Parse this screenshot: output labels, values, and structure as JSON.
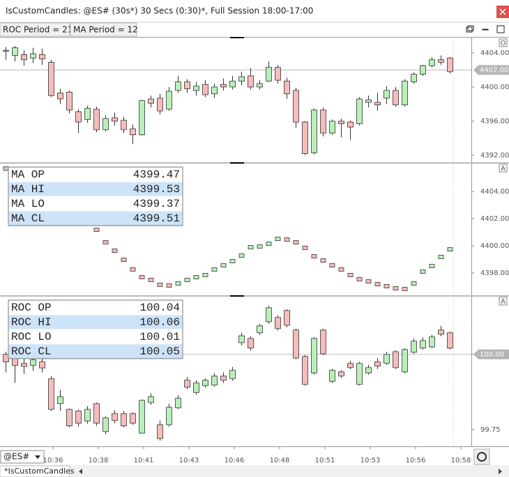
{
  "window": {
    "title": "IsCustomCandles: @ES# (30s*) 30 Secs (0:30)*, Full Session 18:00-17:00"
  },
  "toolbar": {
    "params": [
      "ROC Period = 21",
      "MA Period = 12"
    ]
  },
  "up_color": "#b9f0b9",
  "down_color": "#f6bcbc",
  "panels": [
    {
      "type": "candlestick",
      "badge": "O",
      "ylim": [
        4391.18,
        4405.71
      ],
      "yticks": [
        {
          "value": 4404,
          "label": "4404.00"
        },
        {
          "value": 4400,
          "label": "4400.00"
        },
        {
          "value": 4396,
          "label": "4396.00"
        },
        {
          "value": 4392,
          "label": "4392.00"
        }
      ],
      "last": {
        "value": 4402,
        "label": "4402.00"
      },
      "ohlc": [
        [
          4404.2,
          4404.7,
          4403.2,
          4404.3
        ],
        [
          4403.7,
          4404.8,
          4403.0,
          4404.6
        ],
        [
          4403.8,
          4404.3,
          4402.5,
          4403.2
        ],
        [
          4403.4,
          4404.6,
          4402.8,
          4403.9
        ],
        [
          4403.8,
          4404.5,
          4402.6,
          4403.3
        ],
        [
          4402.9,
          4403.2,
          4398.8,
          4399.0
        ],
        [
          4399.3,
          4399.8,
          4398.0,
          4398.6
        ],
        [
          4399.4,
          4399.6,
          4396.9,
          4397.3
        ],
        [
          4397.1,
          4397.4,
          4394.6,
          4395.9
        ],
        [
          4396.2,
          4397.8,
          4395.8,
          4397.5
        ],
        [
          4397.4,
          4397.7,
          4394.7,
          4395.0
        ],
        [
          4395.0,
          4396.7,
          4394.8,
          4396.3
        ],
        [
          4396.4,
          4397.0,
          4395.5,
          4396.0
        ],
        [
          4396.1,
          4396.5,
          4394.6,
          4395.0
        ],
        [
          4395.1,
          4395.6,
          4393.3,
          4394.4
        ],
        [
          4394.4,
          4398.5,
          4394.3,
          4398.4
        ],
        [
          4398.6,
          4399.0,
          4397.6,
          4398.1
        ],
        [
          4398.7,
          4399.2,
          4396.8,
          4397.2
        ],
        [
          4397.4,
          4400.0,
          4397.2,
          4399.5
        ],
        [
          4399.6,
          4401.3,
          4399.3,
          4400.6
        ],
        [
          4400.6,
          4400.9,
          4399.3,
          4399.8
        ],
        [
          4399.6,
          4400.6,
          4399.0,
          4400.1
        ],
        [
          4400.3,
          4400.8,
          4398.8,
          4399.1
        ],
        [
          4399.2,
          4400.4,
          4398.7,
          4400.0
        ],
        [
          4400.3,
          4401.0,
          4399.6,
          4400.0
        ],
        [
          4400.0,
          4401.3,
          4399.7,
          4400.7
        ],
        [
          4400.7,
          4401.8,
          4400.2,
          4401.2
        ],
        [
          4401.3,
          4402.2,
          4399.7,
          4400.0
        ],
        [
          4400.0,
          4400.8,
          4399.7,
          4400.4
        ],
        [
          4400.7,
          4403.0,
          4400.6,
          4402.3
        ],
        [
          4402.3,
          4402.6,
          4400.4,
          4400.8
        ],
        [
          4400.7,
          4401.1,
          4398.6,
          4399.2
        ],
        [
          4399.6,
          4399.9,
          4395.2,
          4395.9
        ],
        [
          4395.9,
          4396.0,
          4392.0,
          4392.2
        ],
        [
          4392.3,
          4397.5,
          4392.1,
          4397.3
        ],
        [
          4397.3,
          4397.6,
          4394.2,
          4394.6
        ],
        [
          4394.6,
          4396.2,
          4394.4,
          4396.0
        ],
        [
          4396.0,
          4396.3,
          4394.1,
          4395.7
        ],
        [
          4395.9,
          4396.1,
          4393.8,
          4395.3
        ],
        [
          4395.7,
          4398.8,
          4395.5,
          4398.6
        ],
        [
          4398.2,
          4399.0,
          4397.6,
          4398.5
        ],
        [
          4398.2,
          4399.3,
          4397.2,
          4397.9
        ],
        [
          4398.7,
          4400.1,
          4398.0,
          4399.6
        ],
        [
          4399.6,
          4400.0,
          4397.7,
          4397.9
        ],
        [
          4397.9,
          4400.9,
          4397.7,
          4400.7
        ],
        [
          4400.6,
          4401.7,
          4400.4,
          4401.5
        ],
        [
          4401.5,
          4402.6,
          4401.3,
          4402.5
        ],
        [
          4402.5,
          4403.5,
          4402.3,
          4403.2
        ],
        [
          4403.2,
          4403.7,
          4402.6,
          4402.9
        ],
        [
          4403.4,
          4403.5,
          4401.6,
          4401.8
        ]
      ]
    },
    {
      "type": "markers",
      "badge": "A",
      "ylim": [
        4396.36,
        4406.05
      ],
      "yticks": [
        {
          "value": 4404,
          "label": "4404.00"
        },
        {
          "value": 4402,
          "label": "4402.00"
        },
        {
          "value": 4400,
          "label": "4400.00"
        },
        {
          "value": 4398,
          "label": "4398.00"
        }
      ],
      "values": [
        4405.69,
        null,
        null,
        null,
        null,
        null,
        null,
        null,
        null,
        null,
        4401.18,
        4400.26,
        4399.64,
        4398.97,
        4398.26,
        4397.69,
        4397.49,
        4397.13,
        4397.08,
        4397.23,
        4397.49,
        4397.69,
        4397.85,
        4398.26,
        4398.56,
        4398.87,
        4399.28,
        4399.9,
        4399.95,
        4400.15,
        4400.51,
        4400.46,
        4400.26,
        4399.85,
        4399.23,
        4398.92,
        4398.56,
        4398.26,
        4397.85,
        4397.54,
        4397.38,
        4397.18,
        4397.03,
        4396.87,
        4396.82,
        4397.23,
        4398.1,
        4398.51,
        4399.18,
        4399.74
      ],
      "table": [
        [
          "MA OP",
          4399.47
        ],
        [
          "MA HI",
          4399.53
        ],
        [
          "MA LO",
          4399.37
        ],
        [
          "MA CL",
          4399.51
        ]
      ]
    },
    {
      "type": "candlestick",
      "badge": "A",
      "ylim": [
        99.694,
        100.192
      ],
      "yticks": [
        {
          "value": 100,
          "label": "100.00"
        },
        99.75
      ],
      "last": {
        "value": 100,
        "label": "100.00"
      },
      "ohlc": [
        [
          100.0,
          100.009,
          99.94,
          99.975
        ],
        [
          99.986,
          99.998,
          99.905,
          99.963
        ],
        [
          99.97,
          99.99,
          99.935,
          99.96
        ],
        [
          99.963,
          99.995,
          99.945,
          99.982
        ],
        [
          99.975,
          99.99,
          99.94,
          99.955
        ],
        [
          99.919,
          99.928,
          99.812,
          99.817
        ],
        [
          99.836,
          99.882,
          99.812,
          99.859
        ],
        [
          99.817,
          99.82,
          99.757,
          99.762
        ],
        [
          99.812,
          99.816,
          99.76,
          99.771
        ],
        [
          99.778,
          99.828,
          99.77,
          99.817
        ],
        [
          99.836,
          99.84,
          99.762,
          99.771
        ],
        [
          99.743,
          99.794,
          99.734,
          99.789
        ],
        [
          99.803,
          99.814,
          99.771,
          99.78
        ],
        [
          99.803,
          99.812,
          99.757,
          99.762
        ],
        [
          99.803,
          99.808,
          99.766,
          99.771
        ],
        [
          99.738,
          99.85,
          99.736,
          99.847
        ],
        [
          99.84,
          99.87,
          99.832,
          99.859
        ],
        [
          99.766,
          99.78,
          99.713,
          99.72
        ],
        [
          99.766,
          99.836,
          99.76,
          99.824
        ],
        [
          99.822,
          99.864,
          99.818,
          99.854
        ],
        [
          99.914,
          99.925,
          99.884,
          99.891
        ],
        [
          99.873,
          99.914,
          99.866,
          99.905
        ],
        [
          99.896,
          99.92,
          99.889,
          99.914
        ],
        [
          99.898,
          99.938,
          99.893,
          99.928
        ],
        [
          99.928,
          99.94,
          99.905,
          99.914
        ],
        [
          99.919,
          99.958,
          99.912,
          99.947
        ],
        [
          100.039,
          100.072,
          100.03,
          100.062
        ],
        [
          100.053,
          100.06,
          100.012,
          100.021
        ],
        [
          100.072,
          100.102,
          100.065,
          100.095
        ],
        [
          100.109,
          100.162,
          100.102,
          100.155
        ],
        [
          100.123,
          100.13,
          100.079,
          100.086
        ],
        [
          100.146,
          100.15,
          100.09,
          100.097
        ],
        [
          100.081,
          100.085,
          99.984,
          99.988
        ],
        [
          99.993,
          99.998,
          99.896,
          99.9
        ],
        [
          99.938,
          100.058,
          99.933,
          100.053
        ],
        [
          100.081,
          100.085,
          99.998,
          100.002
        ],
        [
          99.91,
          99.951,
          99.905,
          99.947
        ],
        [
          99.942,
          99.947,
          99.921,
          99.928
        ],
        [
          99.97,
          99.979,
          99.951,
          99.956
        ],
        [
          99.9,
          99.975,
          99.896,
          99.97
        ],
        [
          99.938,
          99.965,
          99.933,
          99.956
        ],
        [
          99.975,
          99.988,
          99.951,
          99.961
        ],
        [
          99.97,
          100.009,
          99.965,
          100.0
        ],
        [
          100.009,
          100.014,
          99.951,
          99.956
        ],
        [
          99.942,
          100.021,
          99.937,
          100.016
        ],
        [
          100.007,
          100.053,
          100.002,
          100.044
        ],
        [
          100.021,
          100.056,
          100.016,
          100.046
        ],
        [
          100.025,
          100.065,
          100.021,
          100.058
        ],
        [
          100.081,
          100.095,
          100.06,
          100.067
        ],
        [
          100.072,
          100.076,
          100.016,
          100.021
        ]
      ],
      "table": [
        [
          "ROC OP",
          100.04
        ],
        [
          "ROC HI",
          100.06
        ],
        [
          "ROC LO",
          100.01
        ],
        [
          "ROC CL",
          100.05
        ]
      ]
    }
  ],
  "time_axis": [
    "10:36",
    "10:38",
    "10:41",
    "10:43",
    "10:46",
    "10:48",
    "10:51",
    "10:53",
    "10:56",
    "10:58"
  ],
  "symbol": "@ES#",
  "tab": "*IsCustomCandles"
}
